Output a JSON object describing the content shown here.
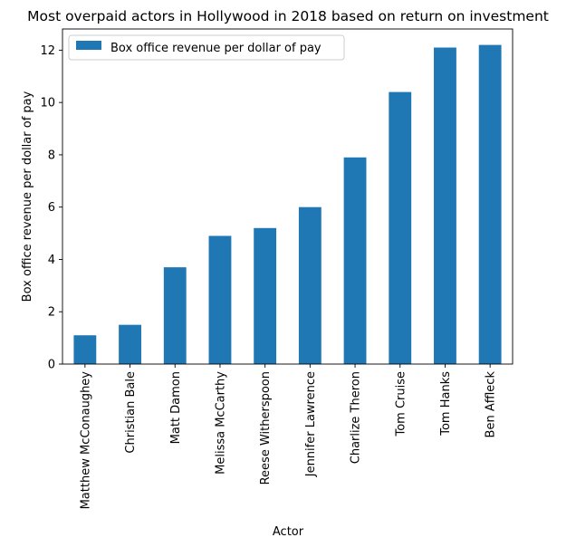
{
  "chart_data": {
    "type": "bar",
    "title": "Most overpaid actors in Hollywood in 2018 based on return on investment",
    "xlabel": "Actor",
    "ylabel": "Box office revenue per dollar of pay",
    "categories": [
      "Matthew McConaughey",
      "Christian Bale",
      "Matt Damon",
      "Melissa McCarthy",
      "Reese Witherspoon",
      "Jennifer Lawrence",
      "Charlize Theron",
      "Tom Cruise",
      "Tom Hanks",
      "Ben Affleck"
    ],
    "series": [
      {
        "name": "Box office revenue per dollar of pay",
        "values": [
          1.1,
          1.5,
          3.7,
          4.9,
          5.2,
          6.0,
          7.9,
          10.4,
          12.1,
          12.2
        ],
        "color": "#1f77b4"
      }
    ],
    "ylim": [
      0,
      12.81
    ],
    "yticks": [
      0,
      2,
      4,
      6,
      8,
      10,
      12
    ],
    "grid": false,
    "legend_position": "top-left"
  }
}
